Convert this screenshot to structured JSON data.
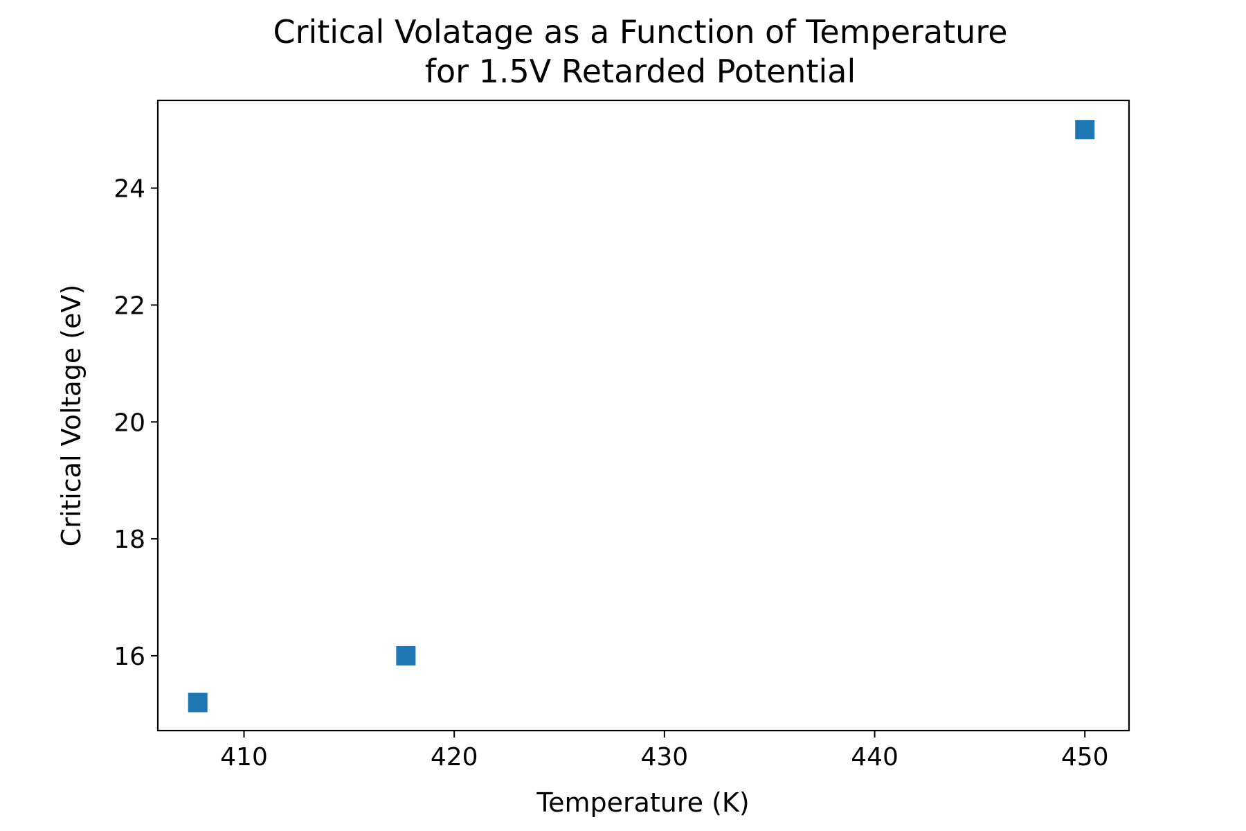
{
  "chart_data": {
    "type": "scatter",
    "title_line1": "Critical Volatage as a Function of Temperature",
    "title_line2": "for 1.5V Retarded Potential",
    "xlabel": "Temperature (K)",
    "ylabel": "Critical Voltage (eV)",
    "xlim": [
      405.9,
      452.1
    ],
    "ylim": [
      14.72,
      25.5
    ],
    "xticks": [
      410,
      420,
      430,
      440,
      450
    ],
    "yticks": [
      16,
      18,
      20,
      22,
      24
    ],
    "grid": false,
    "marker": "square",
    "color": "#1f77b4",
    "series": [
      {
        "x": [
          407.8,
          417.7,
          450.0
        ],
        "y": [
          15.2,
          16.0,
          25.0
        ]
      }
    ]
  }
}
